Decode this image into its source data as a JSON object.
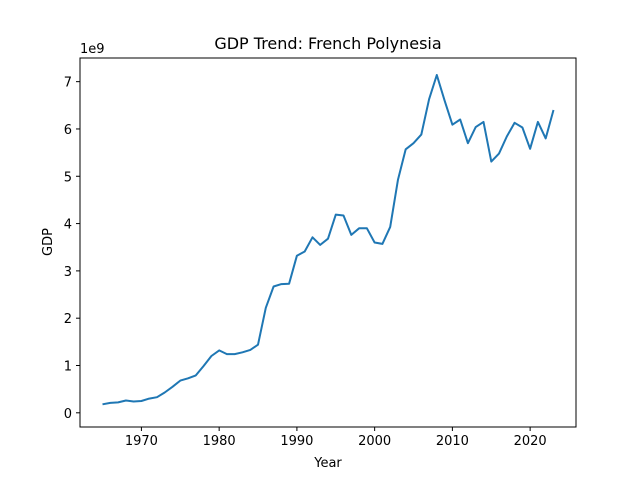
{
  "chart_data": {
    "type": "line",
    "title": "GDP Trend: French Polynesia",
    "xlabel": "Year",
    "ylabel": "GDP",
    "y_scale_label": "1e9",
    "xlim": [
      1962.1,
      2025.9
    ],
    "ylim": [
      -0.3,
      7.5
    ],
    "xticks": [
      1970,
      1980,
      1990,
      2000,
      2010,
      2020
    ],
    "yticks": [
      0,
      1,
      2,
      3,
      4,
      5,
      6,
      7
    ],
    "grid": false,
    "line_color": "#1f77b4",
    "series": [
      {
        "x": [
          1965,
          1966,
          1967,
          1968,
          1969,
          1970,
          1971,
          1972,
          1973,
          1974,
          1975,
          1976,
          1977,
          1978,
          1979,
          1980,
          1981,
          1982,
          1983,
          1984,
          1985,
          1986,
          1987,
          1988,
          1989,
          1990,
          1991,
          1992,
          1993,
          1994,
          1995,
          1996,
          1997,
          1998,
          1999,
          2000,
          2001,
          2002,
          2003,
          2004,
          2005,
          2006,
          2007,
          2008,
          2009,
          2010,
          2011,
          2012,
          2013,
          2014,
          2015,
          2016,
          2017,
          2018,
          2019,
          2020,
          2021,
          2022,
          2023
        ],
        "values": [
          0.18,
          0.21,
          0.22,
          0.26,
          0.24,
          0.25,
          0.3,
          0.33,
          0.43,
          0.55,
          0.68,
          0.73,
          0.79,
          0.99,
          1.2,
          1.32,
          1.24,
          1.24,
          1.28,
          1.33,
          1.44,
          2.22,
          2.67,
          2.72,
          2.73,
          3.32,
          3.41,
          3.71,
          3.55,
          3.68,
          4.19,
          4.17,
          3.76,
          3.9,
          3.9,
          3.6,
          3.57,
          3.93,
          4.93,
          5.57,
          5.7,
          5.88,
          6.63,
          7.14,
          6.6,
          6.09,
          6.2,
          5.7,
          6.04,
          6.15,
          5.31,
          5.48,
          5.84,
          6.13,
          6.03,
          5.58,
          6.15,
          5.8,
          6.4
        ]
      }
    ]
  }
}
